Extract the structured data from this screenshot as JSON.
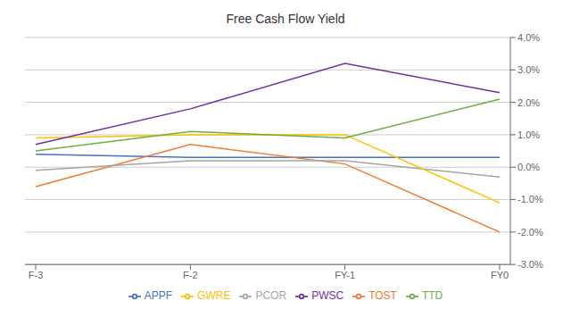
{
  "chart_data": {
    "type": "line",
    "title": "Free Cash Flow Yield",
    "categories": [
      "F-3",
      "F-2",
      "FY-1",
      "FY0"
    ],
    "series": [
      {
        "name": "APPF",
        "color": "#4472C4",
        "values": [
          0.004,
          0.003,
          0.003,
          0.003
        ]
      },
      {
        "name": "TOST",
        "color": "#ED7D31",
        "values": [
          -0.006,
          0.007,
          0.001,
          -0.02
        ]
      },
      {
        "name": "PCOR",
        "color": "#A5A5A5",
        "values": [
          -0.001,
          0.002,
          0.002,
          -0.003
        ]
      },
      {
        "name": "GWRE",
        "color": "#FFC000",
        "values": [
          0.009,
          0.01,
          0.01,
          -0.011
        ]
      },
      {
        "name": "PWSC",
        "color": "#7030A0",
        "values": [
          0.007,
          0.018,
          0.032,
          0.023
        ]
      },
      {
        "name": "TTD",
        "color": "#70AD47",
        "values": [
          0.005,
          0.011,
          0.009,
          0.021
        ]
      }
    ],
    "ylim": [
      -0.03,
      0.04
    ],
    "yticks": [
      {
        "value": -0.03,
        "label": "-3.0%"
      },
      {
        "value": -0.02,
        "label": "-2.0%"
      },
      {
        "value": -0.01,
        "label": "-1.0%"
      },
      {
        "value": 0.0,
        "label": "0.0%"
      },
      {
        "value": 0.01,
        "label": "1.0%"
      },
      {
        "value": 0.02,
        "label": "2.0%"
      },
      {
        "value": 0.03,
        "label": "3.0%"
      },
      {
        "value": 0.04,
        "label": "4.0%"
      }
    ],
    "grid": true,
    "legend": "bottom"
  }
}
